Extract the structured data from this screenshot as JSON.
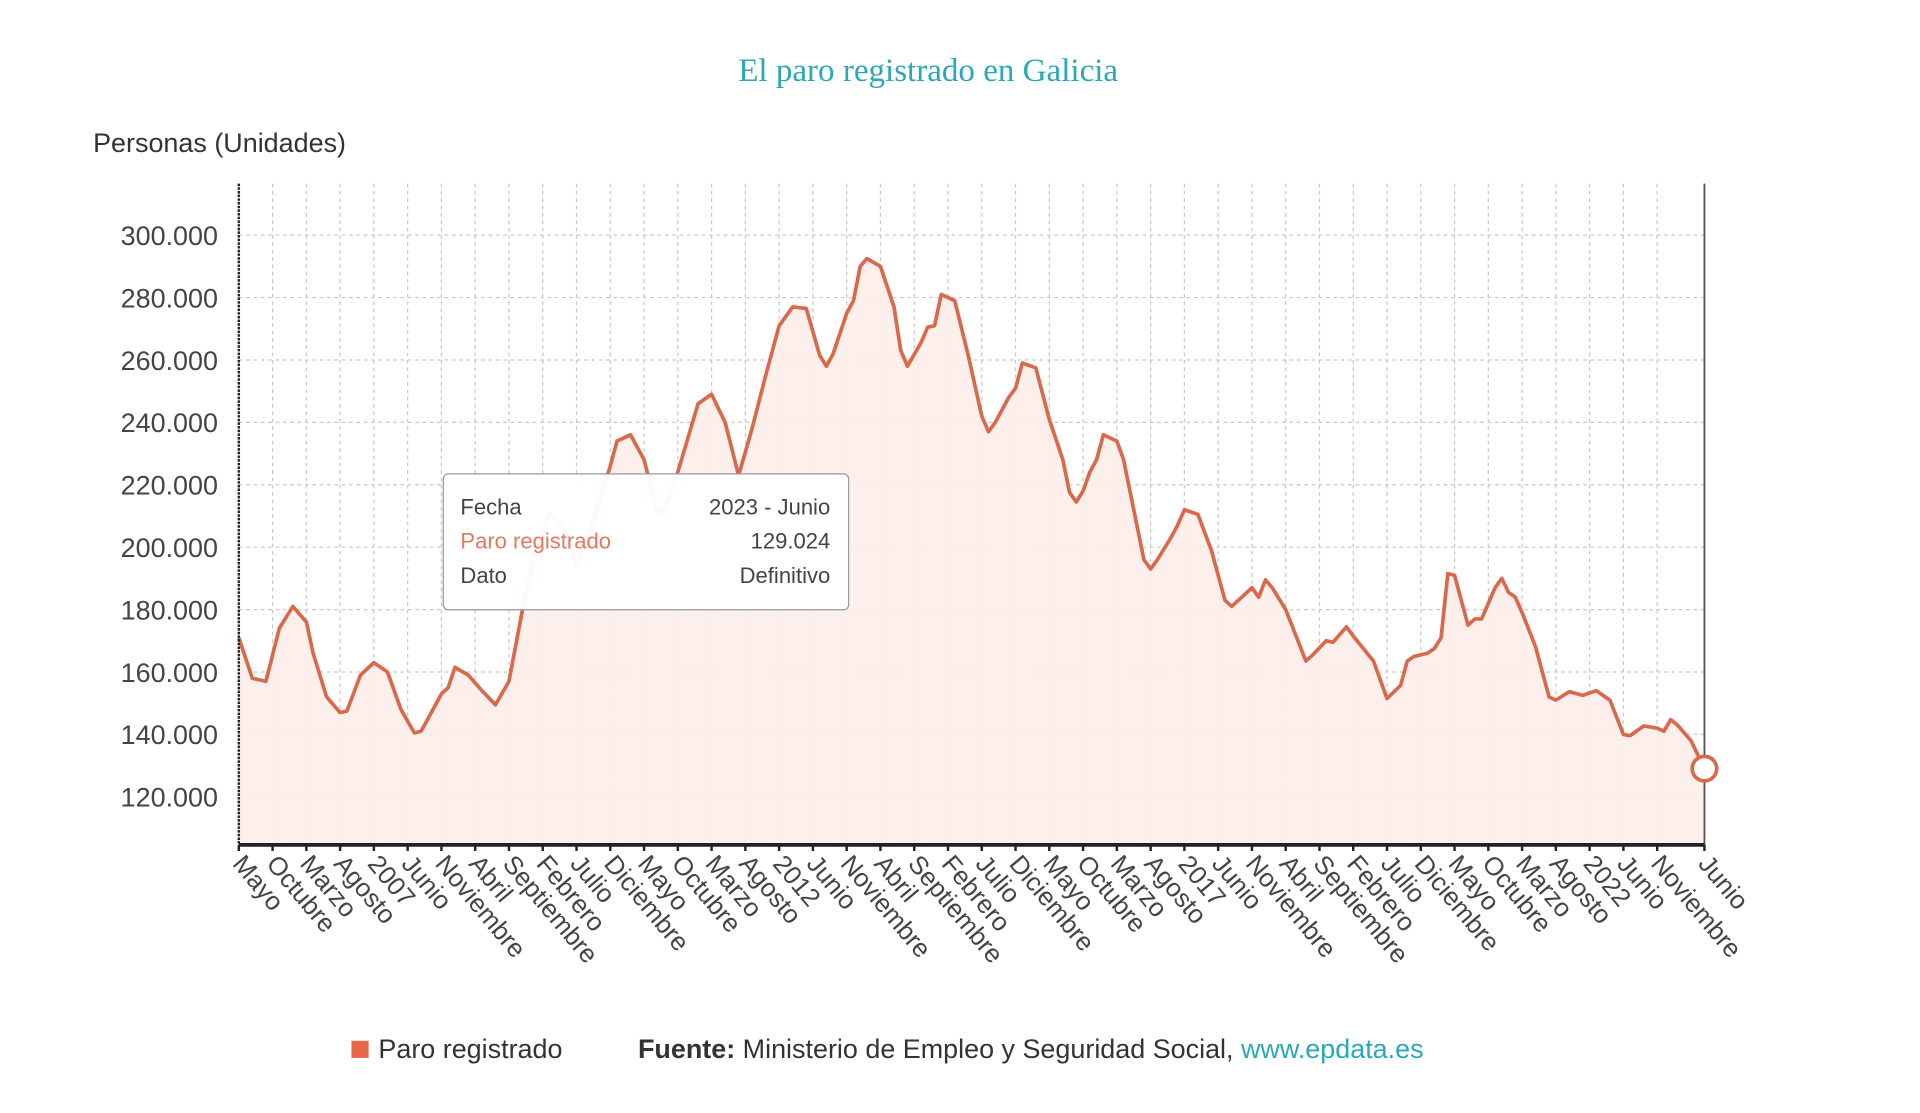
{
  "chart_data": {
    "type": "area",
    "title": "El paro registrado en Galicia",
    "ylabel": "Personas (Unidades)",
    "xlabel": "",
    "ylim": [
      104600,
      316500
    ],
    "xlim": [
      "2005-05",
      "2023-06"
    ],
    "grid": true,
    "yticks": [
      120000,
      140000,
      160000,
      180000,
      200000,
      220000,
      240000,
      260000,
      280000,
      300000
    ],
    "ytick_labels": [
      "120.000",
      "140.000",
      "160.000",
      "180.000",
      "200.000",
      "220.000",
      "240.000",
      "260.000",
      "280.000",
      "300.000"
    ],
    "xticks": [
      "2005-05",
      "2005-10",
      "2006-03",
      "2006-08",
      "2007-01",
      "2007-06",
      "2007-11",
      "2008-04",
      "2008-09",
      "2009-02",
      "2009-07",
      "2009-12",
      "2010-05",
      "2010-10",
      "2011-03",
      "2011-08",
      "2012-01",
      "2012-06",
      "2012-11",
      "2013-04",
      "2013-09",
      "2014-02",
      "2014-07",
      "2014-12",
      "2015-05",
      "2015-10",
      "2016-03",
      "2016-08",
      "2017-01",
      "2017-06",
      "2017-11",
      "2018-04",
      "2018-09",
      "2019-02",
      "2019-07",
      "2019-12",
      "2020-05",
      "2020-10",
      "2021-03",
      "2021-08",
      "2022-01",
      "2022-06",
      "2022-11",
      "2023-06"
    ],
    "xtick_labels": [
      "Mayo",
      "Octubre",
      "Marzo",
      "Agosto",
      "2007",
      "Junio",
      "Noviembre",
      "Abril",
      "Septiembre",
      "Febrero",
      "Julio",
      "Diciembre",
      "Mayo",
      "Octubre",
      "Marzo",
      "Agosto",
      "2012",
      "Junio",
      "Noviembre",
      "Abril",
      "Septiembre",
      "Febrero",
      "Julio",
      "Diciembre",
      "Mayo",
      "Octubre",
      "Marzo",
      "Agosto",
      "2017",
      "Junio",
      "Noviembre",
      "Abril",
      "Septiembre",
      "Febrero",
      "Julio",
      "Diciembre",
      "Mayo",
      "Octubre",
      "Marzo",
      "Agosto",
      "2022",
      "Junio",
      "Noviembre",
      "Junio"
    ],
    "series": [
      {
        "name": "Paro registrado",
        "color": "#d9694a",
        "points": [
          [
            "2005-05",
            171000
          ],
          [
            "2005-07",
            158000
          ],
          [
            "2005-09",
            157000
          ],
          [
            "2005-11",
            174000
          ],
          [
            "2006-01",
            181000
          ],
          [
            "2006-03",
            176000
          ],
          [
            "2006-04",
            166000
          ],
          [
            "2006-06",
            152000
          ],
          [
            "2006-08",
            147000
          ],
          [
            "2006-09",
            147500
          ],
          [
            "2006-11",
            159000
          ],
          [
            "2007-01",
            163000
          ],
          [
            "2007-03",
            160000
          ],
          [
            "2007-05",
            148000
          ],
          [
            "2007-07",
            140500
          ],
          [
            "2007-08",
            141000
          ],
          [
            "2007-11",
            153000
          ],
          [
            "2007-12",
            155000
          ],
          [
            "2008-01",
            161500
          ],
          [
            "2008-03",
            159000
          ],
          [
            "2008-05",
            154000
          ],
          [
            "2008-07",
            149500
          ],
          [
            "2008-09",
            157000
          ],
          [
            "2008-11",
            180000
          ],
          [
            "2009-01",
            200000
          ],
          [
            "2009-03",
            211000
          ],
          [
            "2009-05",
            206000
          ],
          [
            "2009-07",
            194000
          ],
          [
            "2009-09",
            205000
          ],
          [
            "2009-12",
            226000
          ],
          [
            "2010-01",
            234000
          ],
          [
            "2010-03",
            236000
          ],
          [
            "2010-05",
            228000
          ],
          [
            "2010-07",
            211000
          ],
          [
            "2010-08",
            212000
          ],
          [
            "2010-10",
            224000
          ],
          [
            "2011-01",
            246000
          ],
          [
            "2011-03",
            249000
          ],
          [
            "2011-05",
            240000
          ],
          [
            "2011-07",
            223000
          ],
          [
            "2011-09",
            238000
          ],
          [
            "2011-11",
            255000
          ],
          [
            "2012-01",
            271000
          ],
          [
            "2012-03",
            277000
          ],
          [
            "2012-05",
            276500
          ],
          [
            "2012-07",
            261500
          ],
          [
            "2012-08",
            258000
          ],
          [
            "2012-09",
            262000
          ],
          [
            "2012-11",
            275000
          ],
          [
            "2012-12",
            279000
          ],
          [
            "2013-01",
            290000
          ],
          [
            "2013-02",
            292500
          ],
          [
            "2013-04",
            290000
          ],
          [
            "2013-06",
            277000
          ],
          [
            "2013-07",
            263000
          ],
          [
            "2013-08",
            258000
          ],
          [
            "2013-10",
            265500
          ],
          [
            "2013-11",
            270500
          ],
          [
            "2013-12",
            271000
          ],
          [
            "2014-01",
            281000
          ],
          [
            "2014-03",
            279000
          ],
          [
            "2014-05",
            261500
          ],
          [
            "2014-07",
            242000
          ],
          [
            "2014-08",
            237000
          ],
          [
            "2014-09",
            240000
          ],
          [
            "2014-11",
            248000
          ],
          [
            "2014-12",
            251000
          ],
          [
            "2015-01",
            259000
          ],
          [
            "2015-03",
            257500
          ],
          [
            "2015-05",
            241000
          ],
          [
            "2015-07",
            228000
          ],
          [
            "2015-08",
            217500
          ],
          [
            "2015-09",
            214500
          ],
          [
            "2015-10",
            218000
          ],
          [
            "2015-11",
            224000
          ],
          [
            "2015-12",
            228000
          ],
          [
            "2016-01",
            236000
          ],
          [
            "2016-03",
            234000
          ],
          [
            "2016-04",
            228000
          ],
          [
            "2016-07",
            196000
          ],
          [
            "2016-08",
            193000
          ],
          [
            "2016-09",
            196000
          ],
          [
            "2016-11",
            203000
          ],
          [
            "2016-12",
            207000
          ],
          [
            "2017-01",
            212000
          ],
          [
            "2017-03",
            210500
          ],
          [
            "2017-05",
            199000
          ],
          [
            "2017-07",
            183000
          ],
          [
            "2017-08",
            181000
          ],
          [
            "2017-10",
            185000
          ],
          [
            "2017-11",
            187000
          ],
          [
            "2017-12",
            184000
          ],
          [
            "2018-01",
            189500
          ],
          [
            "2018-02",
            187000
          ],
          [
            "2018-04",
            180000
          ],
          [
            "2018-07",
            163500
          ],
          [
            "2018-08",
            165500
          ],
          [
            "2018-10",
            170000
          ],
          [
            "2018-11",
            169500
          ],
          [
            "2019-01",
            174500
          ],
          [
            "2019-02",
            171500
          ],
          [
            "2019-05",
            163500
          ],
          [
            "2019-07",
            151500
          ],
          [
            "2019-09",
            155700
          ],
          [
            "2019-10",
            163500
          ],
          [
            "2019-11",
            165000
          ],
          [
            "2020-01",
            166000
          ],
          [
            "2020-02",
            167500
          ],
          [
            "2020-03",
            171000
          ],
          [
            "2020-04",
            191500
          ],
          [
            "2020-05",
            191000
          ],
          [
            "2020-07",
            175000
          ],
          [
            "2020-08",
            177000
          ],
          [
            "2020-09",
            177000
          ],
          [
            "2020-11",
            187000
          ],
          [
            "2020-12",
            190000
          ],
          [
            "2021-01",
            185500
          ],
          [
            "2021-02",
            184000
          ],
          [
            "2021-03",
            179000
          ],
          [
            "2021-05",
            168000
          ],
          [
            "2021-07",
            152000
          ],
          [
            "2021-08",
            151000
          ],
          [
            "2021-10",
            153700
          ],
          [
            "2021-12",
            152500
          ],
          [
            "2022-01",
            153300
          ],
          [
            "2022-02",
            154000
          ],
          [
            "2022-04",
            151000
          ],
          [
            "2022-06",
            140000
          ],
          [
            "2022-07",
            139600
          ],
          [
            "2022-09",
            142700
          ],
          [
            "2022-11",
            142000
          ],
          [
            "2022-12",
            141000
          ],
          [
            "2023-01",
            144700
          ],
          [
            "2023-02",
            143000
          ],
          [
            "2023-04",
            138000
          ],
          [
            "2023-06",
            129024
          ]
        ]
      }
    ],
    "highlighted_point": [
      "2023-06",
      129024
    ],
    "legend": {
      "position": "bottom",
      "label": "Paro registrado",
      "color": "#e8664a"
    }
  },
  "tooltip": {
    "rows": [
      {
        "label": "Fecha",
        "value": "2023 - Junio"
      },
      {
        "label": "Paro registrado",
        "value": "129.024"
      },
      {
        "label": "Dato",
        "value": "Definitivo"
      }
    ]
  },
  "footer": {
    "legend_label": "Paro registrado",
    "source_label": "Fuente:",
    "source_text": " Ministerio de Empleo y Seguridad Social, ",
    "source_link": "www.epdata.es"
  },
  "colors": {
    "title": "#2aa8b8",
    "line": "#d9694a",
    "fill": "#fdeeea",
    "link": "#2aa8b8",
    "text": "#333333"
  }
}
